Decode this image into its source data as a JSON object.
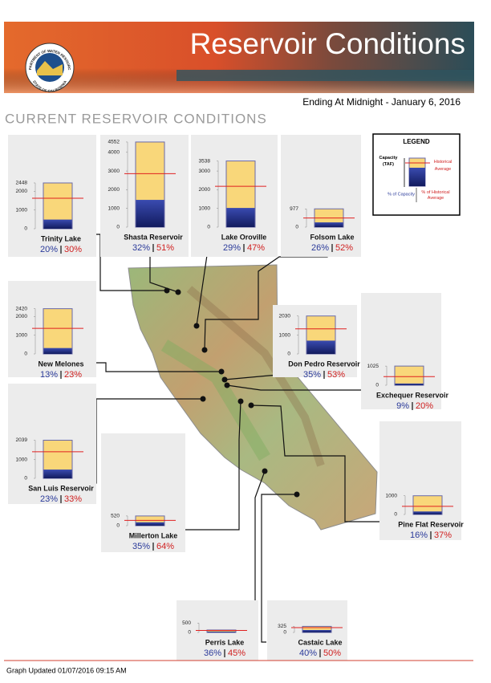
{
  "header": {
    "title": "Reservoir Conditions",
    "logo_top": "DEPARTMENT OF WATER RESOURCES",
    "logo_bottom": "STATE OF CALIFORNIA",
    "date": "Ending At Midnight - January 6, 2016",
    "subtitle": "CURRENT RESERVOIR CONDITIONS"
  },
  "legend": {
    "title": "LEGEND",
    "capacity": "Capacity (TAF)",
    "historical": "Historical Average",
    "pct_capacity": "% of Capacity",
    "pct_historical": "% of Historical Average"
  },
  "footer": "Graph Updated 01/07/2016 09:15 AM",
  "chart_data": [
    {
      "type": "bar",
      "title": "Trinity Lake",
      "capacity": 2448,
      "storage": 490,
      "historical_average": 1632,
      "pct_capacity": "20%",
      "pct_historical": "30%",
      "ylim": [
        0,
        2448
      ],
      "yticks": [
        0,
        1000,
        2000,
        2448
      ]
    },
    {
      "type": "bar",
      "title": "Shasta Reservoir",
      "capacity": 4552,
      "storage": 1457,
      "historical_average": 2857,
      "pct_capacity": "32%",
      "pct_historical": "51%",
      "ylim": [
        0,
        4552
      ],
      "yticks": [
        0,
        1000,
        2000,
        3000,
        4000,
        4552
      ]
    },
    {
      "type": "bar",
      "title": "Lake Oroville",
      "capacity": 3538,
      "storage": 1026,
      "historical_average": 2183,
      "pct_capacity": "29%",
      "pct_historical": "47%",
      "ylim": [
        0,
        3538
      ],
      "yticks": [
        0,
        1000,
        2000,
        3000,
        3538
      ]
    },
    {
      "type": "bar",
      "title": "Folsom Lake",
      "capacity": 977,
      "storage": 254,
      "historical_average": 488,
      "pct_capacity": "26%",
      "pct_historical": "52%",
      "ylim": [
        0,
        977
      ],
      "yticks": [
        0,
        977
      ]
    },
    {
      "type": "bar",
      "title": "New Melones",
      "capacity": 2420,
      "storage": 315,
      "historical_average": 1368,
      "pct_capacity": "13%",
      "pct_historical": "23%",
      "ylim": [
        0,
        2420
      ],
      "yticks": [
        0,
        1000,
        2000,
        2420
      ]
    },
    {
      "type": "bar",
      "title": "Don Pedro Reservoir",
      "capacity": 2030,
      "storage": 711,
      "historical_average": 1341,
      "pct_capacity": "35%",
      "pct_historical": "53%",
      "ylim": [
        0,
        2030
      ],
      "yticks": [
        0,
        1000,
        2030
      ]
    },
    {
      "type": "bar",
      "title": "Exchequer Reservoir",
      "capacity": 1025,
      "storage": 92,
      "historical_average": 461,
      "pct_capacity": "9%",
      "pct_historical": "20%",
      "ylim": [
        0,
        1025
      ],
      "yticks": [
        0,
        1025
      ]
    },
    {
      "type": "bar",
      "title": "San Luis Reservoir",
      "capacity": 2039,
      "storage": 469,
      "historical_average": 1421,
      "pct_capacity": "23%",
      "pct_historical": "33%",
      "ylim": [
        0,
        2039
      ],
      "yticks": [
        0,
        1000,
        2039
      ]
    },
    {
      "type": "bar",
      "title": "Millerton Lake",
      "capacity": 520,
      "storage": 182,
      "historical_average": 284,
      "pct_capacity": "35%",
      "pct_historical": "64%",
      "ylim": [
        0,
        520
      ],
      "yticks": [
        0,
        520
      ]
    },
    {
      "type": "bar",
      "title": "Pine Flat Reservoir",
      "capacity": 1000,
      "storage": 160,
      "historical_average": 432,
      "pct_capacity": "16%",
      "pct_historical": "37%",
      "ylim": [
        0,
        1000
      ],
      "yticks": [
        0,
        1000
      ]
    },
    {
      "type": "bar",
      "title": "Perris Lake",
      "capacity": 131,
      "storage": 47,
      "historical_average": 105,
      "pct_capacity": "36%",
      "pct_historical": "45%",
      "ylim": [
        0,
        500
      ],
      "yticks": [
        0,
        500
      ]
    },
    {
      "type": "bar",
      "title": "Castaic Lake",
      "capacity": 325,
      "storage": 130,
      "historical_average": 260,
      "pct_capacity": "40%",
      "pct_historical": "50%",
      "ylim": [
        0,
        325
      ],
      "yticks": [
        0,
        325
      ]
    }
  ]
}
